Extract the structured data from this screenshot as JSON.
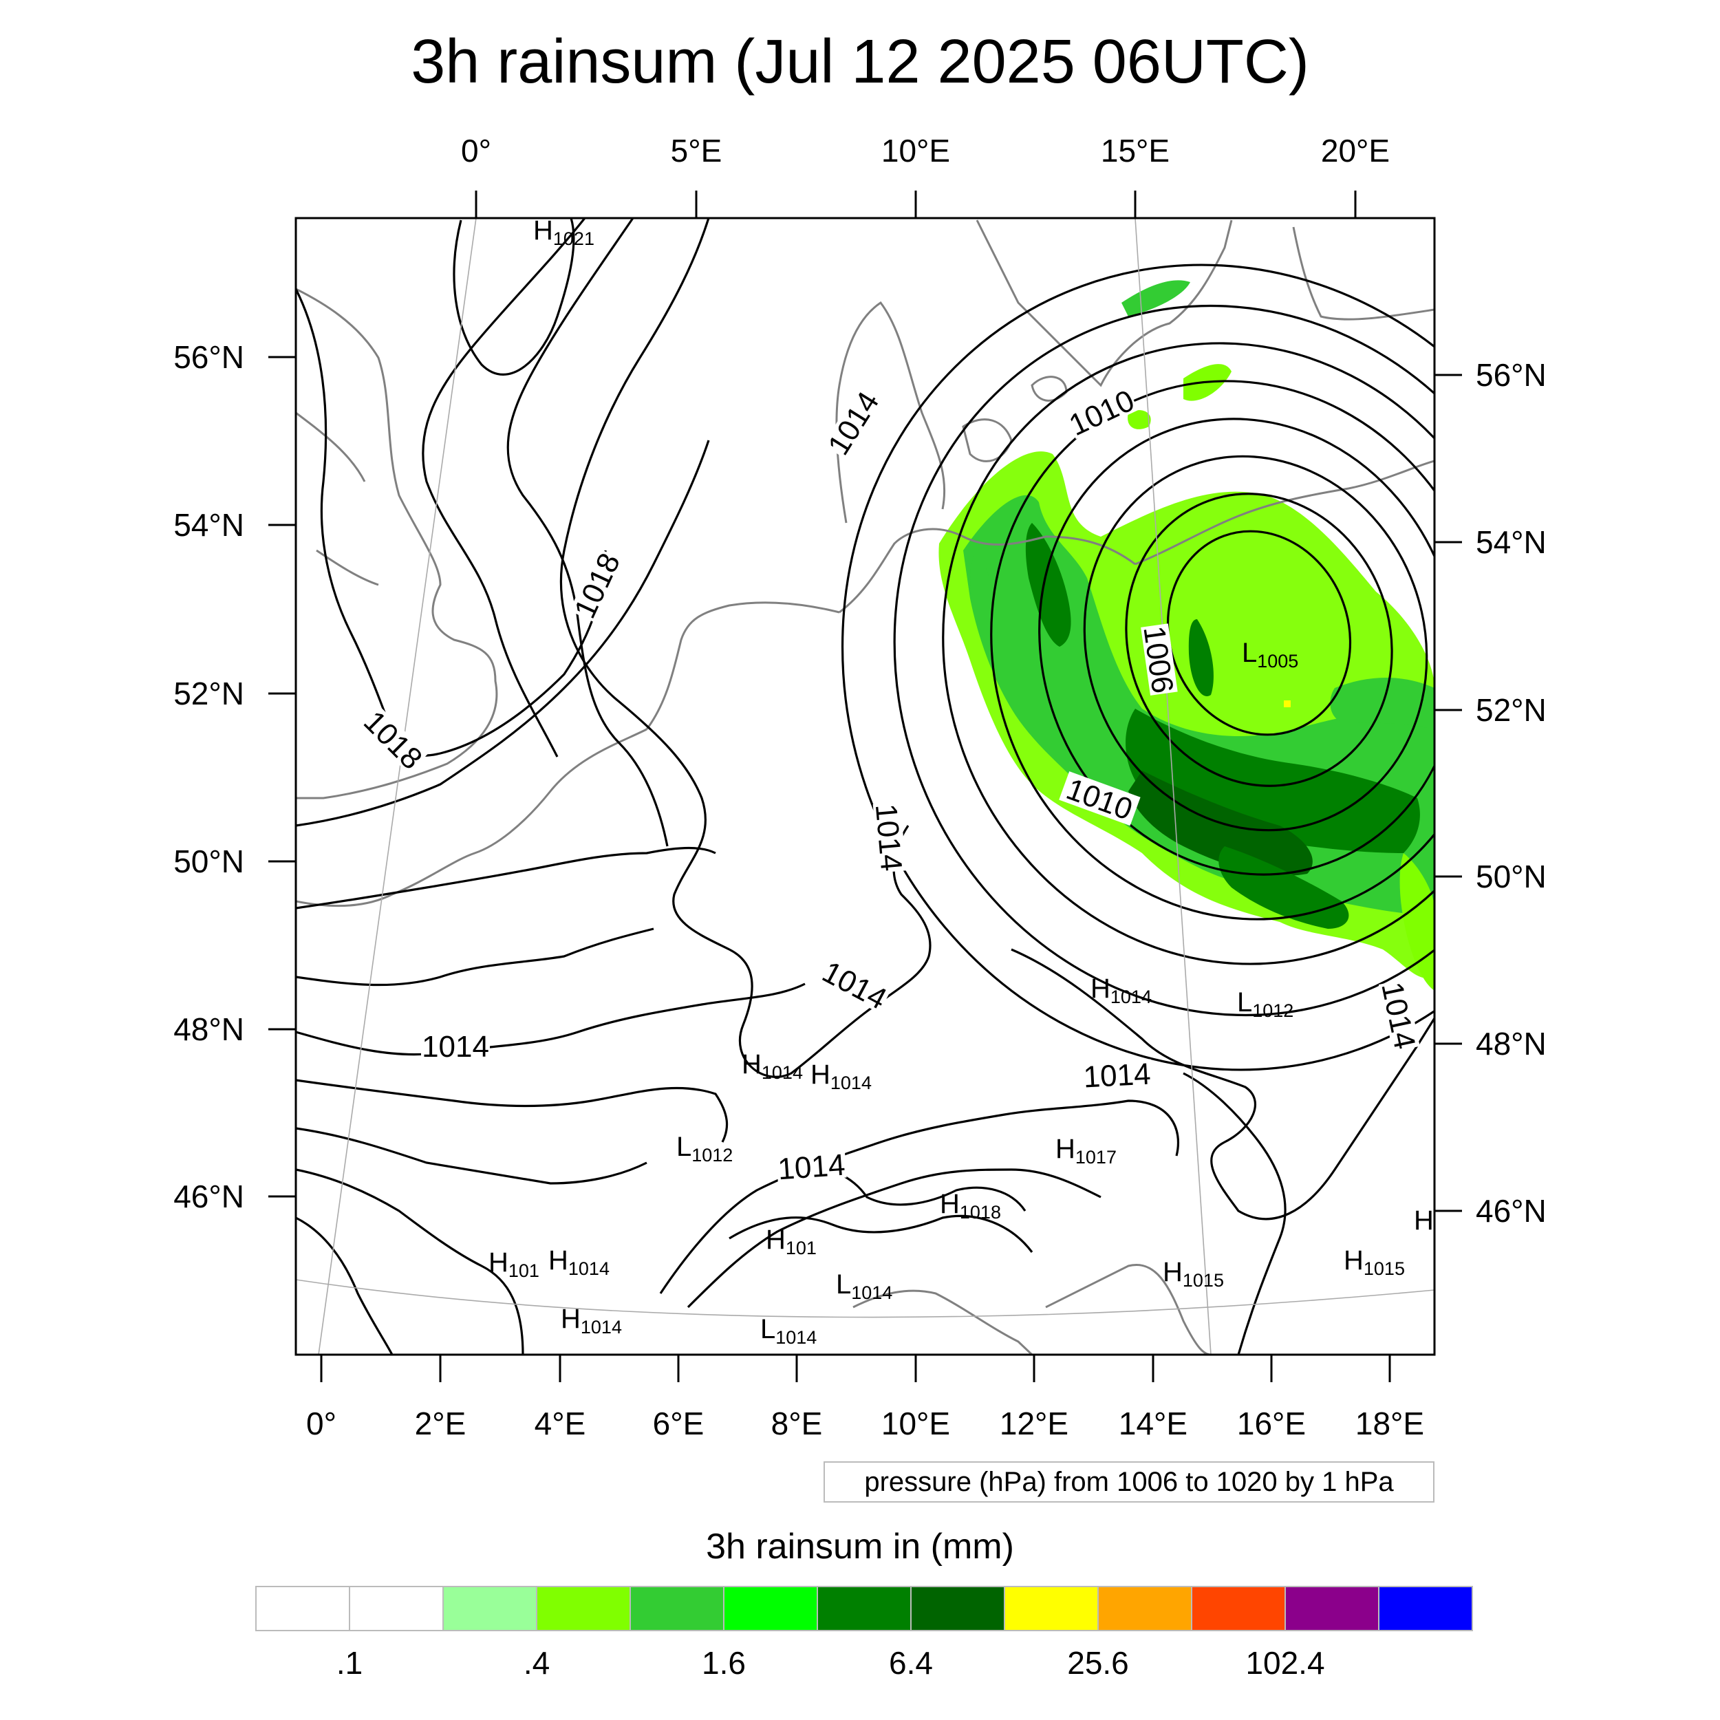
{
  "title": "3h rainsum (Jul 12 2025 06UTC)",
  "top_lon_labels": [
    "0°",
    "5°E",
    "10°E",
    "15°E",
    "20°E"
  ],
  "bottom_lon_labels": [
    "0°",
    "2°E",
    "4°E",
    "6°E",
    "8°E",
    "10°E",
    "12°E",
    "14°E",
    "16°E",
    "18°E"
  ],
  "left_lat_labels": [
    "56°N",
    "54°N",
    "52°N",
    "50°N",
    "48°N",
    "46°N"
  ],
  "right_lat_labels": [
    "56°N",
    "54°N",
    "52°N",
    "50°N",
    "48°N",
    "46°N"
  ],
  "contour_labels": [
    {
      "text": "1014",
      "value": 1014
    },
    {
      "text": "1010",
      "value": 1010
    },
    {
      "text": "1018",
      "value": 1018
    },
    {
      "text": "1018",
      "value": 1018
    },
    {
      "text": "1006",
      "value": 1006
    },
    {
      "text": "1010",
      "value": 1010
    },
    {
      "text": "1014",
      "value": 1014
    },
    {
      "text": "1014",
      "value": 1014
    },
    {
      "text": "1014",
      "value": 1014
    },
    {
      "text": "1014",
      "value": 1014
    },
    {
      "text": "1014",
      "value": 1014
    },
    {
      "text": "1014",
      "value": 1014
    }
  ],
  "pressure_centers": [
    {
      "type": "H",
      "value": "1021"
    },
    {
      "type": "L",
      "value": "1005"
    },
    {
      "type": "H",
      "value": "1014"
    },
    {
      "type": "L",
      "value": "1012"
    },
    {
      "type": "H",
      "value": "1014"
    },
    {
      "type": "H",
      "value": "1014"
    },
    {
      "type": "L",
      "value": "1012"
    },
    {
      "type": "H",
      "value": "1017"
    },
    {
      "type": "H",
      "value": "1018"
    },
    {
      "type": "H",
      "value": "101"
    },
    {
      "type": "H",
      "value": "1014"
    },
    {
      "type": "H",
      "value": "101"
    },
    {
      "type": "L",
      "value": "1014"
    },
    {
      "type": "H",
      "value": "1014"
    },
    {
      "type": "L",
      "value": "1014"
    },
    {
      "type": "H",
      "value": "1015"
    },
    {
      "type": "H",
      "value": "1015"
    },
    {
      "type": "H",
      "value": ""
    }
  ],
  "contour_legend": "pressure (hPa) from 1006 to 1020 by 1 hPa",
  "colorbar_title": "3h rainsum in (mm)",
  "colorbar": {
    "colors": [
      "#ffffff",
      "#ffffff",
      "#99ff99",
      "#80ff00",
      "#33cc33",
      "#00ff00",
      "#008000",
      "#006400",
      "#ffff00",
      "#ffa500",
      "#ff4500",
      "#8b008b",
      "#0000ff"
    ],
    "labels": [
      ".1",
      ".4",
      "1.6",
      "6.4",
      "25.6",
      "102.4"
    ]
  }
}
